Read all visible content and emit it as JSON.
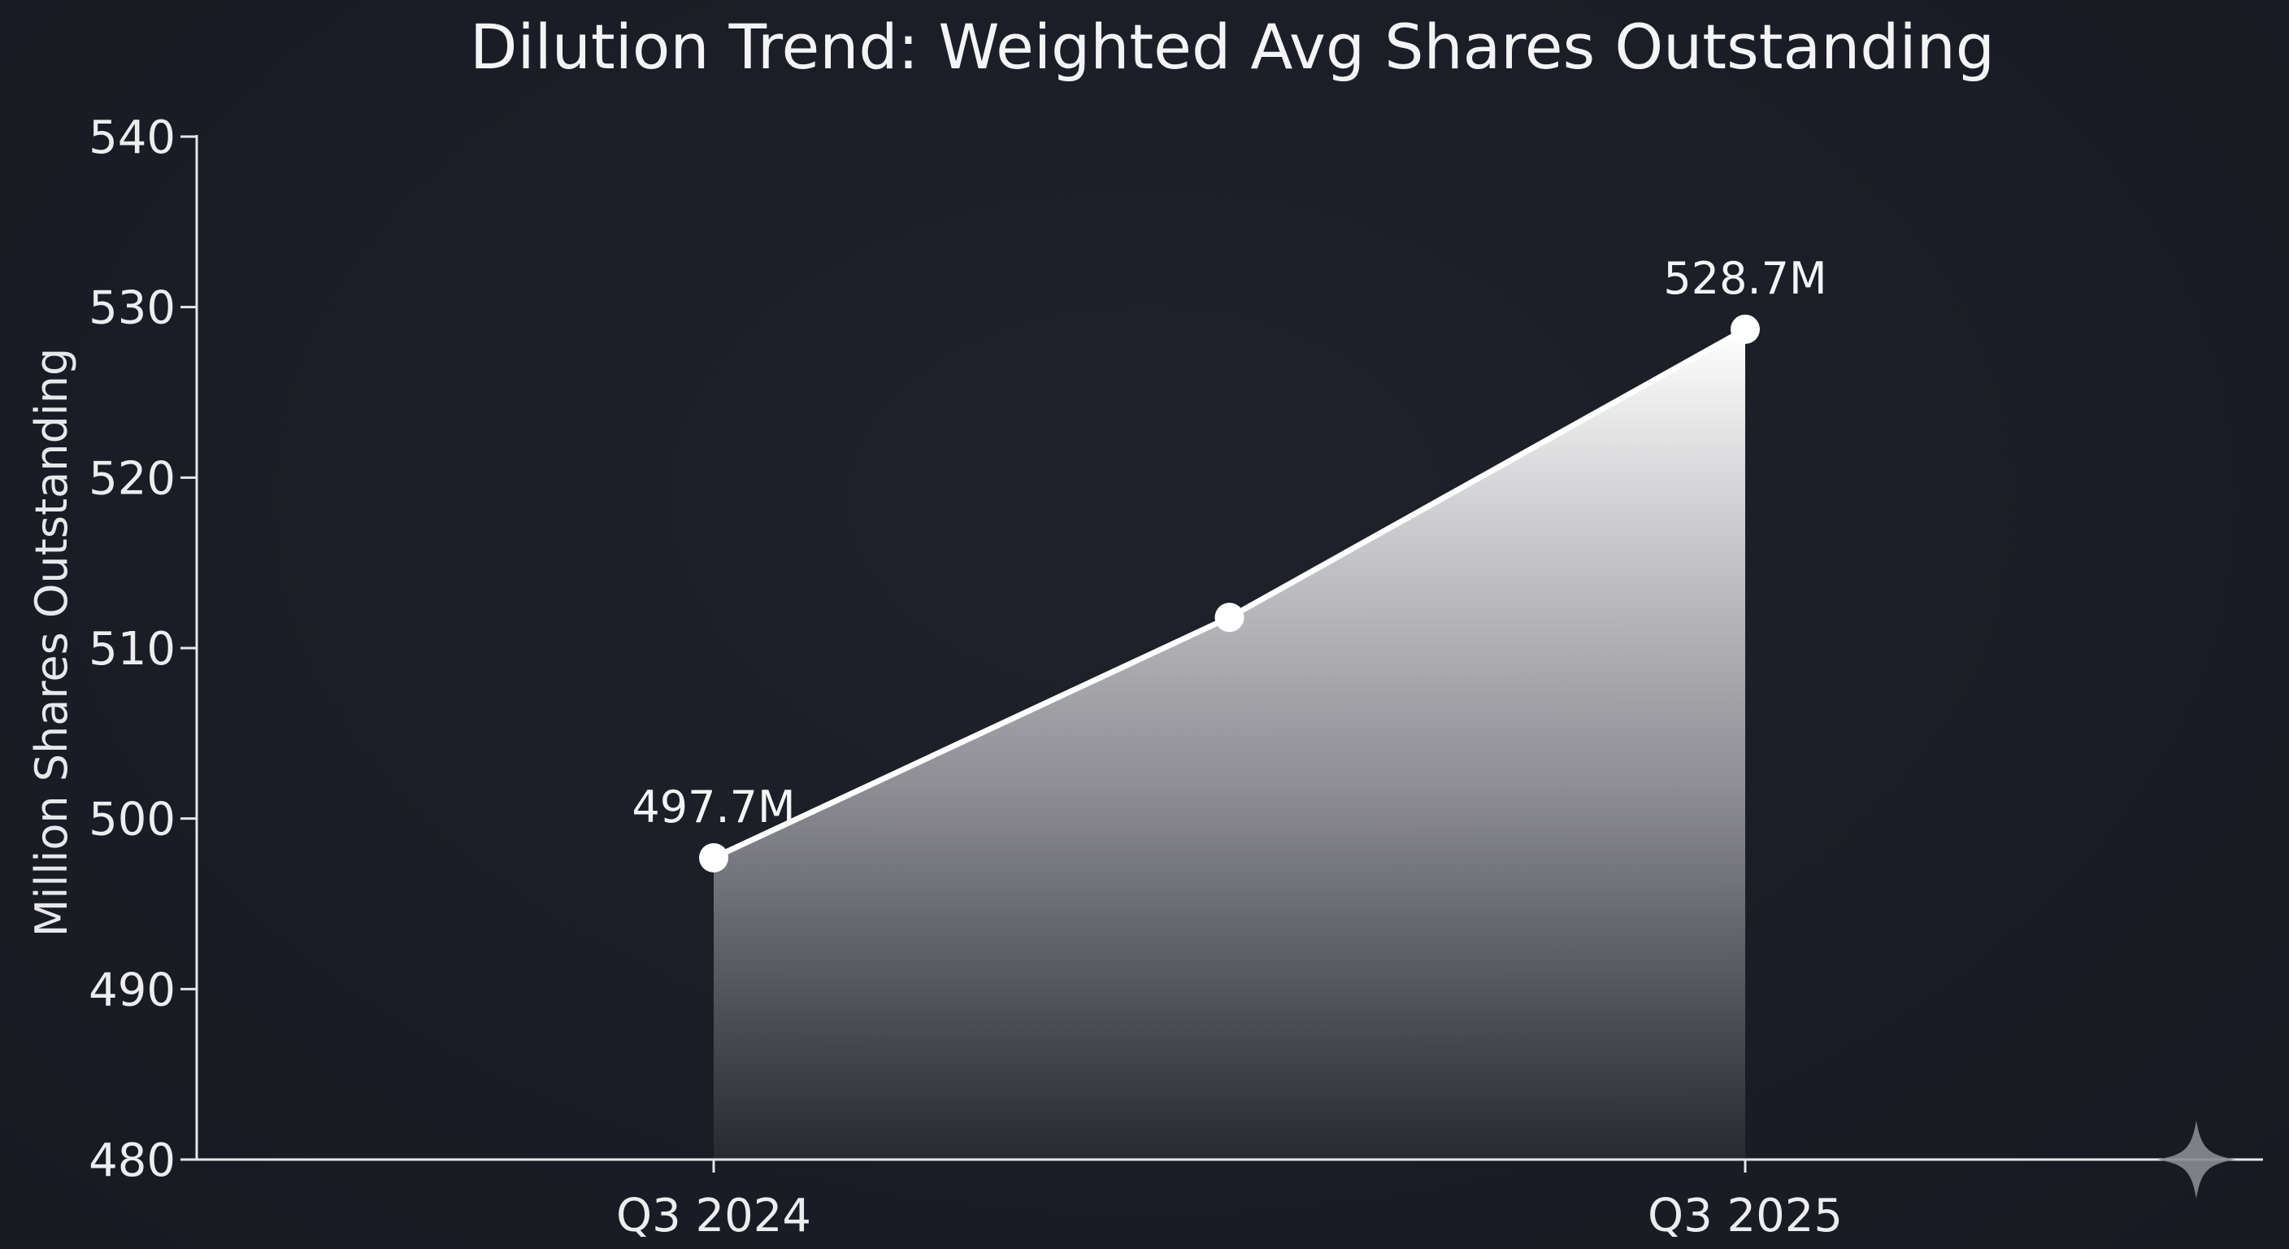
{
  "chart_data": {
    "type": "area",
    "title": "Dilution Trend: Weighted Avg Shares Outstanding",
    "xlabel": "",
    "ylabel": "Million Shares Outstanding",
    "x_tick_labels": [
      "Q3 2024",
      "Q3 2025"
    ],
    "y_ticks": [
      480,
      490,
      500,
      510,
      520,
      530,
      540
    ],
    "y_tick_labels": [
      "480",
      "490",
      "500",
      "510",
      "520",
      "530",
      "540"
    ],
    "ylim": [
      480,
      540
    ],
    "x": [
      0,
      0.5,
      1
    ],
    "values": [
      497.7,
      511.8,
      528.7
    ],
    "data_labels": [
      "497.7M",
      "",
      "528.7M"
    ],
    "grid": false,
    "colors": {
      "background": "#1c1e27",
      "line": "#ffffff",
      "area_top": "#ffffff",
      "area_bottom": "#2a2b33"
    }
  }
}
